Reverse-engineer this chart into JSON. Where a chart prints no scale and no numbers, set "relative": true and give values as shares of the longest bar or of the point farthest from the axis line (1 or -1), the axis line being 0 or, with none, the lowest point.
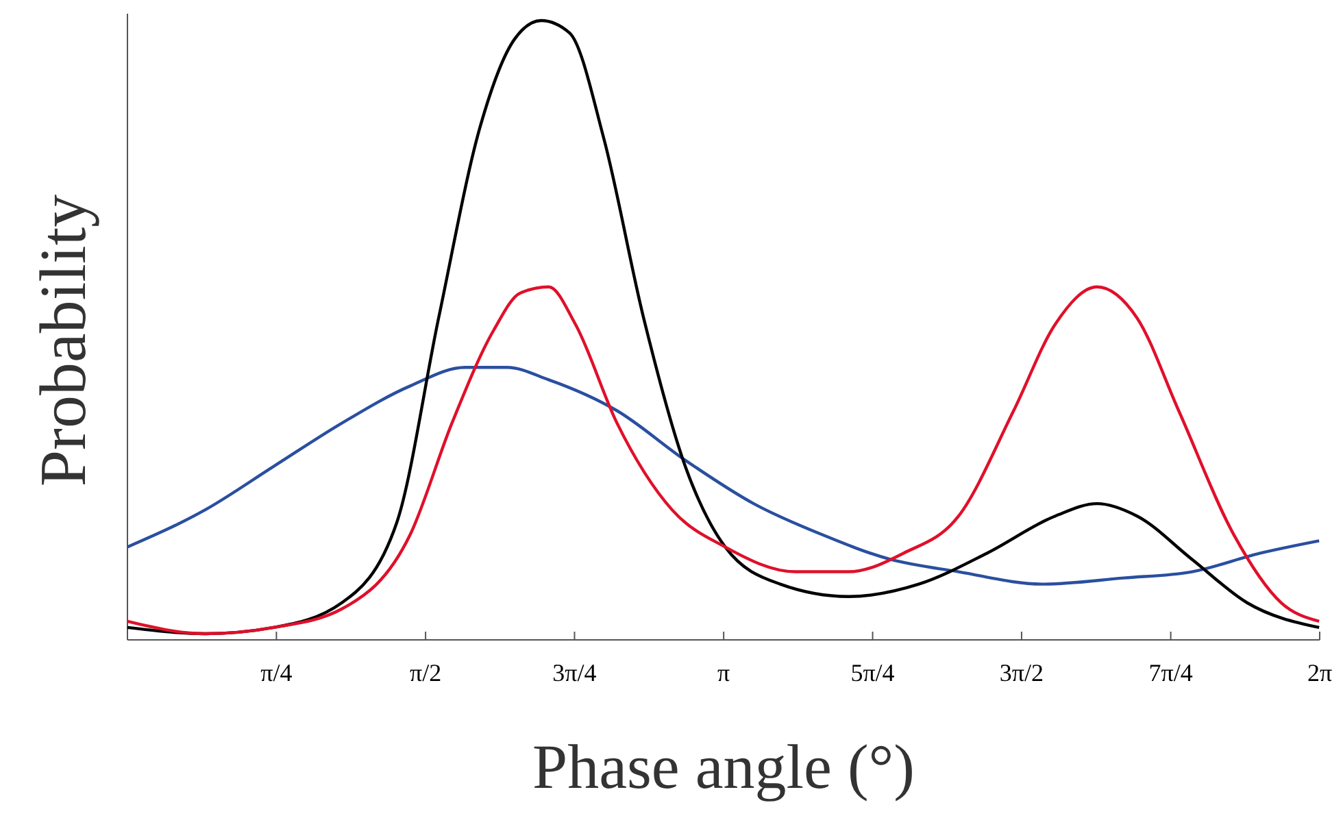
{
  "chart_data": {
    "type": "line",
    "relative": true,
    "xlabel": "Phase angle (°)",
    "ylabel": "Probability",
    "xlim": [
      0,
      6.283
    ],
    "xticks": [
      {
        "value": 0.785,
        "label": "π/4"
      },
      {
        "value": 1.571,
        "label": "π/2"
      },
      {
        "value": 2.356,
        "label": "3π/4"
      },
      {
        "value": 3.142,
        "label": "π"
      },
      {
        "value": 3.927,
        "label": "5π/4"
      },
      {
        "value": 4.712,
        "label": "3π/2"
      },
      {
        "value": 5.498,
        "label": "7π/4"
      },
      {
        "value": 6.283,
        "label": "2π"
      }
    ],
    "grid": false,
    "marker": "none",
    "line_style": "solid",
    "series": [
      {
        "color": "#2a4fa0",
        "x": [
          0,
          0.41,
          0.77,
          1.13,
          1.49,
          1.78,
          2.0,
          2.22,
          2.58,
          2.94,
          3.3,
          3.66,
          4.02,
          4.38,
          4.82,
          5.25,
          5.61,
          5.97,
          6.28
        ],
        "values": [
          0.15,
          0.21,
          0.28,
          0.35,
          0.41,
          0.44,
          0.44,
          0.42,
          0.37,
          0.29,
          0.22,
          0.17,
          0.13,
          0.11,
          0.09,
          0.1,
          0.11,
          0.14,
          0.16
        ]
      },
      {
        "color": "#000000",
        "x": [
          0,
          0.41,
          0.77,
          1.13,
          1.42,
          1.64,
          1.86,
          2.04,
          2.18,
          2.33,
          2.51,
          2.72,
          2.94,
          3.15,
          3.44,
          3.8,
          4.17,
          4.53,
          4.89,
          5.11,
          5.32,
          5.61,
          5.9,
          6.28
        ],
        "values": [
          0.02,
          0.01,
          0.02,
          0.06,
          0.19,
          0.52,
          0.83,
          0.97,
          1,
          0.98,
          0.81,
          0.52,
          0.28,
          0.15,
          0.09,
          0.07,
          0.09,
          0.14,
          0.2,
          0.22,
          0.2,
          0.13,
          0.06,
          0.02
        ]
      },
      {
        "color": "#e0102a",
        "x": [
          0,
          0.41,
          0.77,
          1.13,
          1.49,
          1.71,
          1.93,
          2.07,
          2.22,
          2.36,
          2.58,
          2.87,
          3.15,
          3.52,
          3.8,
          4.09,
          4.38,
          4.67,
          4.89,
          5.11,
          5.32,
          5.54,
          5.83,
          6.08,
          6.28
        ],
        "values": [
          0.03,
          0.01,
          0.02,
          0.05,
          0.17,
          0.35,
          0.5,
          0.56,
          0.57,
          0.51,
          0.35,
          0.21,
          0.15,
          0.11,
          0.11,
          0.14,
          0.2,
          0.37,
          0.51,
          0.57,
          0.52,
          0.37,
          0.17,
          0.06,
          0.03
        ]
      }
    ]
  }
}
